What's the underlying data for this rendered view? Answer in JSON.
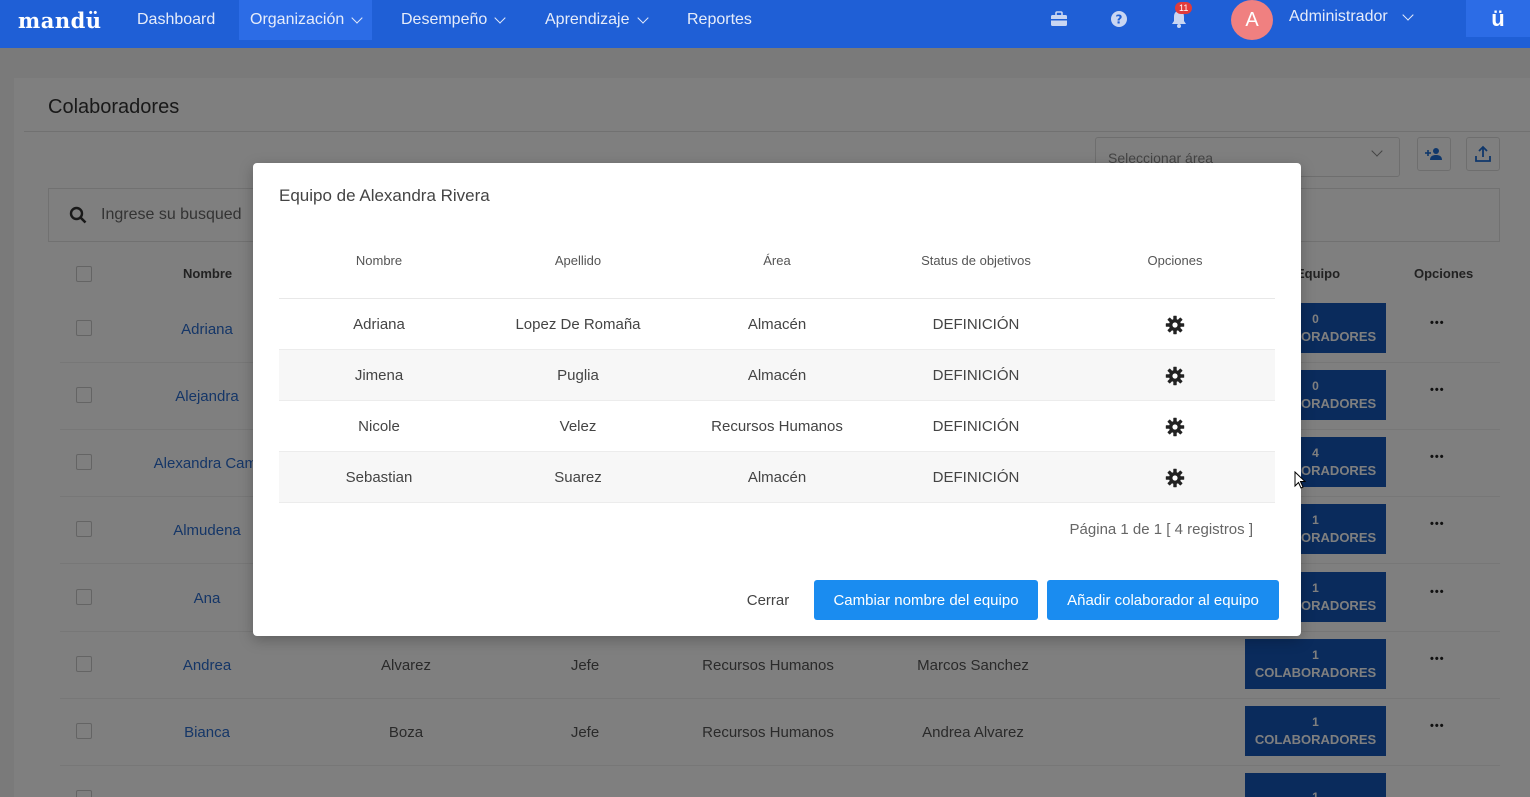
{
  "nav": {
    "brand": "mandü",
    "items": [
      {
        "label": "Dashboard"
      },
      {
        "label": "Organización"
      },
      {
        "label": "Desempeño"
      },
      {
        "label": "Aprendizaje"
      },
      {
        "label": "Reportes"
      }
    ],
    "notification_count": "11",
    "avatar_initial": "A",
    "user_name": "Administrador",
    "logo_text": "ü"
  },
  "page": {
    "title": "Colaboradores",
    "area_select_placeholder": "Seleccionar área",
    "search_placeholder": "Ingrese su busqued",
    "headers": {
      "nombre": "Nombre",
      "equipo": "Equipo",
      "opciones": "Opciones"
    },
    "rows": [
      {
        "nombre": "Adriana",
        "apellido": "",
        "cargo": "",
        "area": "",
        "jefe": "",
        "count": "0",
        "label": "COLABORADORES"
      },
      {
        "nombre": "Alejandra",
        "apellido": "",
        "cargo": "",
        "area": "",
        "jefe": "",
        "count": "0",
        "label": "COLABORADORES"
      },
      {
        "nombre": "Alexandra Cami",
        "apellido": "",
        "cargo": "",
        "area": "",
        "jefe": "",
        "count": "4",
        "label": "COLABORADORES"
      },
      {
        "nombre": "Almudena",
        "apellido": "",
        "cargo": "",
        "area": "",
        "jefe": "",
        "count": "1",
        "label": "COLABORADORES"
      },
      {
        "nombre": "Ana",
        "apellido": "",
        "cargo": "",
        "area": "",
        "jefe": "",
        "count": "1",
        "label": "COLABORADORES"
      },
      {
        "nombre": "Andrea",
        "apellido": "Alvarez",
        "cargo": "Jefe",
        "area": "Recursos Humanos",
        "jefe": "Marcos Sanchez",
        "count": "1",
        "label": "COLABORADORES"
      },
      {
        "nombre": "Bianca",
        "apellido": "Boza",
        "cargo": "Jefe",
        "area": "Recursos Humanos",
        "jefe": "Andrea Alvarez",
        "count": "1",
        "label": "COLABORADORES"
      },
      {
        "nombre": "",
        "apellido": "",
        "cargo": "",
        "area": "",
        "jefe": "",
        "count": "1",
        "label": ""
      }
    ]
  },
  "modal": {
    "title": "Equipo de Alexandra Rivera",
    "headers": [
      "Nombre",
      "Apellido",
      "Área",
      "Status de objetivos",
      "Opciones"
    ],
    "rows": [
      {
        "nombre": "Adriana",
        "apellido": "Lopez De Romaña",
        "area": "Almacén",
        "status": "DEFINICIÓN"
      },
      {
        "nombre": "Jimena",
        "apellido": "Puglia",
        "area": "Almacén",
        "status": "DEFINICIÓN"
      },
      {
        "nombre": "Nicole",
        "apellido": "Velez",
        "area": "Recursos Humanos",
        "status": "DEFINICIÓN"
      },
      {
        "nombre": "Sebastian",
        "apellido": "Suarez",
        "area": "Almacén",
        "status": "DEFINICIÓN"
      }
    ],
    "pager": "Página 1 de 1 [ 4 registros ]",
    "close_label": "Cerrar",
    "rename_label": "Cambiar nombre del equipo",
    "add_label": "Añadir colaborador al equipo"
  },
  "colors": {
    "nav": "#1f5fd6",
    "primary_button": "#1a8cf0",
    "collab_button": "#1457b8",
    "link": "#2a6ccf"
  }
}
